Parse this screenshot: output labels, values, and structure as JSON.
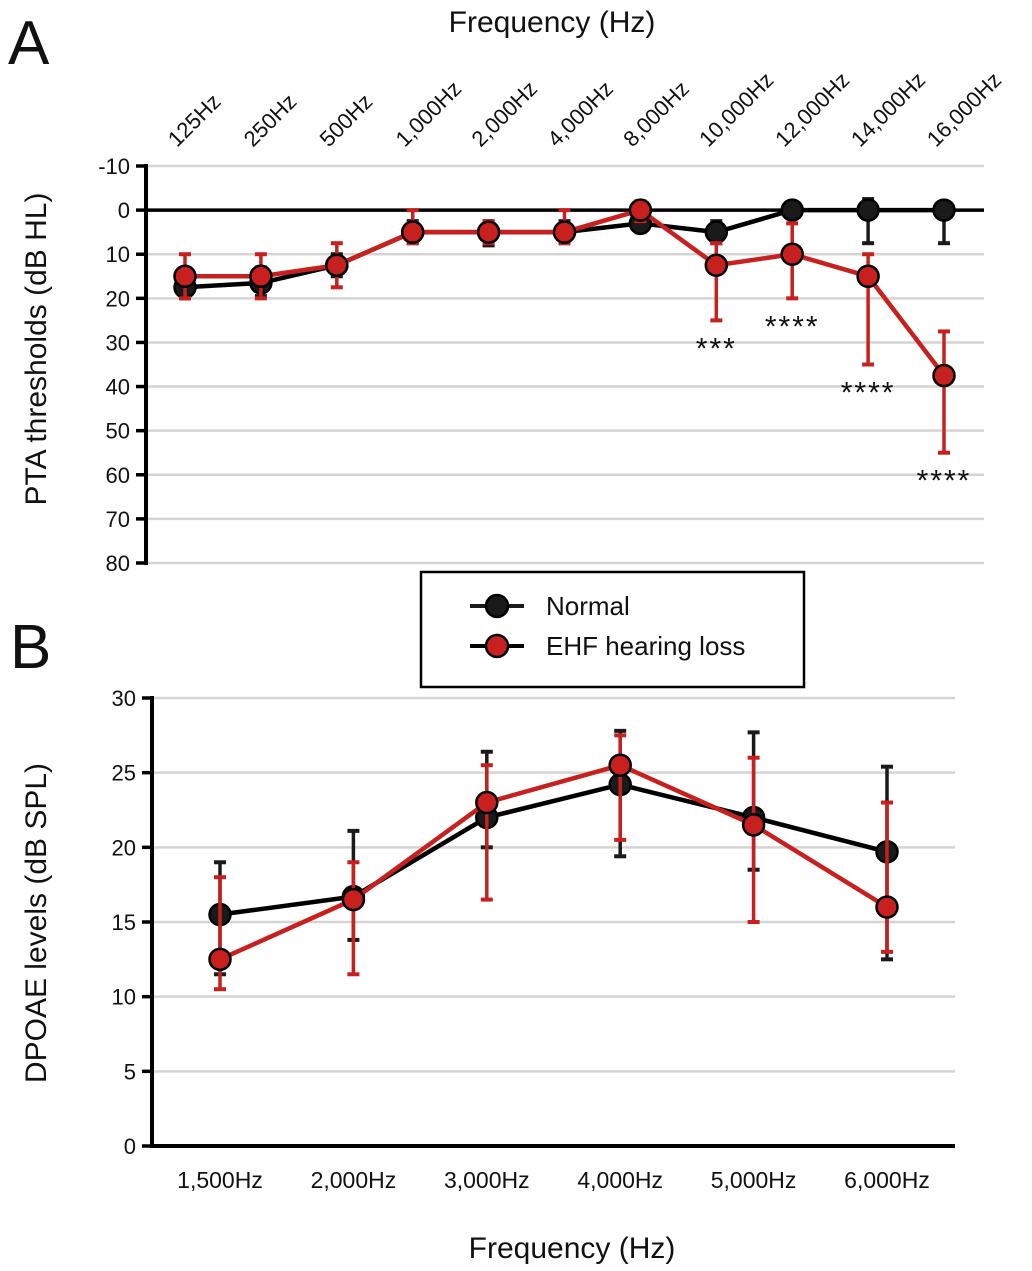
{
  "colors": {
    "normal": "#1a1a1a",
    "ehf": "#c8201e",
    "grid": "#d4d4d4",
    "axis": "#000000"
  },
  "legend": {
    "items": [
      {
        "label": "Normal",
        "color": "#1a1a1a"
      },
      {
        "label": "EHF hearing loss",
        "color": "#c8201e"
      }
    ]
  },
  "chart_data": [
    {
      "panel": "A",
      "type": "line",
      "xlabel": "Frequency (Hz)",
      "ylabel": "PTA thresholds (dB HL)",
      "categories": [
        "125Hz",
        "250Hz",
        "500Hz",
        "1,000Hz",
        "2,000Hz",
        "4,000Hz",
        "8,000Hz",
        "10,000Hz",
        "12,000Hz",
        "14,000Hz",
        "16,000Hz"
      ],
      "ylim": [
        -10,
        80
      ],
      "y_inverted": true,
      "yticks": [
        -10,
        0,
        10,
        20,
        30,
        40,
        50,
        60,
        70,
        80
      ],
      "grid": true,
      "reference_line": 0,
      "series": [
        {
          "name": "Normal",
          "values": [
            17.5,
            16.5,
            12.5,
            5,
            5,
            5,
            3,
            5,
            0,
            0,
            0
          ],
          "err_low": [
            20,
            19.5,
            15,
            7.5,
            8,
            7.5,
            5,
            7.5,
            0,
            7.5,
            7.5
          ],
          "err_high": [
            15,
            13,
            10,
            2.5,
            2.5,
            2.5,
            0,
            2.5,
            0,
            -2.5,
            0
          ]
        },
        {
          "name": "EHF hearing loss",
          "values": [
            15,
            15,
            12.5,
            5,
            5,
            5,
            0,
            12.5,
            10,
            15,
            37.5
          ],
          "err_low": [
            20,
            20,
            17.5,
            7.5,
            7.5,
            7.5,
            2.5,
            25,
            20,
            35,
            55
          ],
          "err_high": [
            10,
            10,
            7.5,
            0,
            2.5,
            0,
            -2,
            7.5,
            3,
            10,
            27.5
          ]
        }
      ],
      "annotations": [
        {
          "text": "***",
          "category": "10,000Hz"
        },
        {
          "text": "****",
          "category": "12,000Hz"
        },
        {
          "text": "****",
          "category": "14,000Hz"
        },
        {
          "text": "****",
          "category": "16,000Hz"
        }
      ]
    },
    {
      "panel": "B",
      "type": "line",
      "xlabel": "Frequency (Hz)",
      "ylabel": "DPOAE levels  (dB SPL)",
      "categories": [
        "1,500Hz",
        "2,000Hz",
        "3,000Hz",
        "4,000Hz",
        "5,000Hz",
        "6,000Hz"
      ],
      "ylim": [
        0,
        30
      ],
      "yticks": [
        0,
        5,
        10,
        15,
        20,
        25,
        30
      ],
      "grid": true,
      "series": [
        {
          "name": "Normal",
          "values": [
            15.5,
            16.7,
            22,
            24.2,
            22,
            19.7
          ],
          "err_low": [
            11.5,
            13.8,
            20,
            19.4,
            18.5,
            12.5
          ],
          "err_high": [
            19,
            21.1,
            26.4,
            27.8,
            27.7,
            25.4
          ]
        },
        {
          "name": "EHF hearing loss",
          "values": [
            12.5,
            16.5,
            23,
            25.5,
            21.5,
            16
          ],
          "err_low": [
            10.5,
            11.5,
            16.5,
            20.5,
            15,
            13
          ],
          "err_high": [
            18,
            19,
            25.5,
            27.5,
            26,
            23
          ]
        }
      ]
    }
  ]
}
